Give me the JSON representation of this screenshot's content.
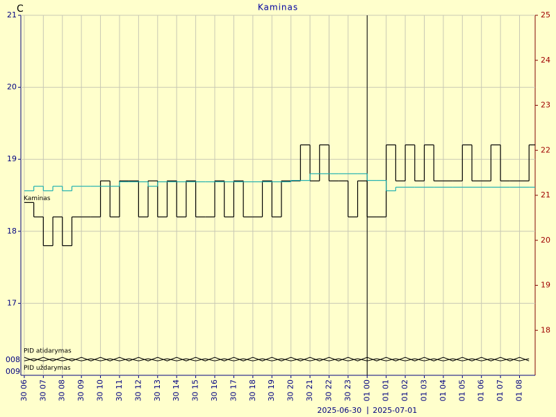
{
  "chart_data": {
    "type": "line",
    "title": "Kaminas",
    "y_unit": "C",
    "date_labels": [
      "2025-06-30",
      "2025-07-01"
    ],
    "pid_axis_labels": [
      "008",
      "009"
    ],
    "grid": true,
    "xlim": [
      5.82,
      32.82
    ],
    "xticks": [
      {
        "value": 6,
        "label": "30 06"
      },
      {
        "value": 7,
        "label": "30 07"
      },
      {
        "value": 8,
        "label": "30 08"
      },
      {
        "value": 9,
        "label": "30 09"
      },
      {
        "value": 10,
        "label": "30 10"
      },
      {
        "value": 11,
        "label": "30 11"
      },
      {
        "value": 12,
        "label": "30 12"
      },
      {
        "value": 13,
        "label": "30 13"
      },
      {
        "value": 14,
        "label": "30 14"
      },
      {
        "value": 15,
        "label": "30 15"
      },
      {
        "value": 16,
        "label": "30 16"
      },
      {
        "value": 17,
        "label": "30 17"
      },
      {
        "value": 18,
        "label": "30 18"
      },
      {
        "value": 19,
        "label": "30 19"
      },
      {
        "value": 20,
        "label": "30 20"
      },
      {
        "value": 21,
        "label": "30 21"
      },
      {
        "value": 22,
        "label": "30 22"
      },
      {
        "value": 23,
        "label": "30 23"
      },
      {
        "value": 24,
        "label": "01 00"
      },
      {
        "value": 25,
        "label": "01 01"
      },
      {
        "value": 26,
        "label": "01 02"
      },
      {
        "value": 27,
        "label": "01 03"
      },
      {
        "value": 28,
        "label": "01 04"
      },
      {
        "value": 29,
        "label": "01 05"
      },
      {
        "value": 30,
        "label": "01 06"
      },
      {
        "value": 31,
        "label": "01 07"
      },
      {
        "value": 32,
        "label": "01 08"
      }
    ],
    "day_boundary": 24,
    "ylim": [
      16,
      21
    ],
    "yticks": [
      17,
      18,
      19,
      20,
      21
    ],
    "y2lim": [
      17,
      25
    ],
    "y2ticks": [
      18,
      19,
      20,
      21,
      22,
      23,
      24,
      25
    ],
    "x": [
      6,
      6.5,
      7,
      7.5,
      8,
      8.5,
      9,
      9.5,
      10,
      10.5,
      11,
      11.5,
      12,
      12.5,
      13,
      13.5,
      14,
      14.5,
      15,
      15.5,
      16,
      16.5,
      17,
      17.5,
      18,
      18.5,
      19,
      19.5,
      20,
      20.5,
      21,
      21.5,
      22,
      22.5,
      23,
      23.5,
      24,
      24.5,
      25,
      25.5,
      26,
      26.5,
      27,
      27.5,
      28,
      28.5,
      29,
      29.5,
      30,
      30.5,
      31,
      31.5,
      32,
      32.5
    ],
    "series": [
      {
        "name": "Kaminas",
        "color": "#000000",
        "step": true,
        "values": [
          18.4,
          18.2,
          17.8,
          18.2,
          17.8,
          18.2,
          18.2,
          18.2,
          18.7,
          18.2,
          18.7,
          18.7,
          18.2,
          18.7,
          18.2,
          18.7,
          18.2,
          18.7,
          18.2,
          18.2,
          18.7,
          18.2,
          18.7,
          18.2,
          18.2,
          18.7,
          18.2,
          18.7,
          18.7,
          19.2,
          18.7,
          19.2,
          18.7,
          18.7,
          18.2,
          18.7,
          18.2,
          18.2,
          19.2,
          18.7,
          19.2,
          18.7,
          19.2,
          18.7,
          18.7,
          18.7,
          19.2,
          18.7,
          18.7,
          19.2,
          18.7,
          18.7,
          18.7,
          19.2
        ]
      },
      {
        "color": "#20b0b0",
        "axis": "y2",
        "step": true,
        "values": [
          21.1,
          21.2,
          21.1,
          21.2,
          21.1,
          21.2,
          21.2,
          21.2,
          21.2,
          21.2,
          21.3,
          21.3,
          21.3,
          21.2,
          21.3,
          21.3,
          21.3,
          21.3,
          21.3,
          21.3,
          21.3,
          21.3,
          21.3,
          21.3,
          21.3,
          21.3,
          21.3,
          21.3,
          21.33,
          21.33,
          21.48,
          21.48,
          21.48,
          21.48,
          21.48,
          21.48,
          21.33,
          21.33,
          21.1,
          21.18,
          21.18,
          21.18,
          21.18,
          21.18,
          21.18,
          21.18,
          21.18,
          21.18,
          21.18,
          21.18,
          21.18,
          21.18,
          21.18,
          21.18
        ]
      },
      {
        "name": "PID atidarymas",
        "color": "#000000",
        "values": [
          16.25,
          16.2,
          16.25,
          16.2,
          16.25,
          16.2,
          16.25,
          16.2,
          16.25,
          16.2,
          16.25,
          16.2,
          16.25,
          16.2,
          16.25,
          16.2,
          16.25,
          16.2,
          16.25,
          16.2,
          16.25,
          16.2,
          16.25,
          16.2,
          16.25,
          16.2,
          16.25,
          16.2,
          16.25,
          16.2,
          16.25,
          16.2,
          16.25,
          16.2,
          16.25,
          16.2,
          16.25,
          16.2,
          16.25,
          16.2,
          16.25,
          16.2,
          16.25,
          16.2,
          16.25,
          16.2,
          16.25,
          16.2,
          16.25,
          16.2,
          16.25,
          16.2,
          16.25,
          16.2
        ]
      },
      {
        "name": "PID uždarymas",
        "color": "#000000",
        "values": [
          16.2,
          16.23,
          16.2,
          16.23,
          16.2,
          16.23,
          16.2,
          16.23,
          16.2,
          16.23,
          16.2,
          16.23,
          16.2,
          16.23,
          16.2,
          16.23,
          16.2,
          16.23,
          16.2,
          16.23,
          16.2,
          16.23,
          16.2,
          16.23,
          16.2,
          16.23,
          16.2,
          16.23,
          16.2,
          16.23,
          16.2,
          16.23,
          16.2,
          16.23,
          16.2,
          16.23,
          16.2,
          16.23,
          16.2,
          16.23,
          16.2,
          16.23,
          16.2,
          16.23,
          16.2,
          16.23,
          16.2,
          16.23,
          16.2,
          16.23,
          16.2,
          16.23,
          16.2,
          16.23
        ]
      }
    ]
  }
}
